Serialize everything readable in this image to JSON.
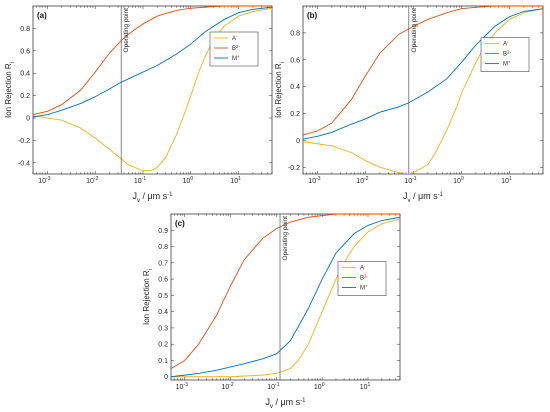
{
  "chart_data": [
    {
      "type": "line",
      "panel_label": "(a)",
      "xscale": "log",
      "xlim": [
        0.0005,
        50
      ],
      "ylim": [
        -0.5,
        1.0
      ],
      "xticks": [
        0.001,
        0.01,
        0.1,
        1,
        10
      ],
      "xtick_labels": [
        "10",
        "10",
        "10",
        "10",
        "10"
      ],
      "xtick_exponents": [
        "-3",
        "-2",
        "-1",
        "0",
        "1"
      ],
      "yticks": [
        -0.4,
        -0.2,
        0,
        0.2,
        0.4,
        0.6,
        0.8
      ],
      "ytick_labels": [
        "-0.4",
        "-0.2",
        "0",
        "0.2",
        "0.4",
        "0.6",
        "0.8"
      ],
      "xlabel": "J",
      "xlabel_sub": "v",
      "xlabel_unit": " / μm s",
      "xlabel_sup": "-1",
      "ylabel": "Ion Rejection R",
      "ylabel_sub": "i",
      "annotation": "Operating point",
      "operating_point_x": 0.035,
      "legend_position": "right",
      "series": [
        {
          "name": "A",
          "sup": "-",
          "color": "#EDB120",
          "x": [
            0.0005,
            0.002,
            0.005,
            0.01,
            0.02,
            0.05,
            0.1,
            0.15,
            0.2,
            0.3,
            0.5,
            0.8,
            1,
            1.5,
            2,
            3,
            5,
            10,
            20,
            50
          ],
          "y": [
            0.02,
            -0.02,
            -0.09,
            -0.18,
            -0.28,
            -0.42,
            -0.47,
            -0.47,
            -0.44,
            -0.35,
            -0.15,
            0.08,
            0.2,
            0.42,
            0.55,
            0.7,
            0.82,
            0.91,
            0.95,
            0.98
          ]
        },
        {
          "name": "B",
          "sup": "2-",
          "color": "#D95319",
          "x": [
            0.0005,
            0.001,
            0.002,
            0.005,
            0.01,
            0.02,
            0.035,
            0.05,
            0.1,
            0.2,
            0.5,
            1,
            2,
            5,
            10,
            50
          ],
          "y": [
            0.03,
            0.06,
            0.12,
            0.25,
            0.41,
            0.58,
            0.69,
            0.75,
            0.84,
            0.91,
            0.96,
            0.98,
            0.99,
            1.0,
            1.0,
            1.0
          ]
        },
        {
          "name": "M",
          "sup": "+",
          "color": "#0072BD",
          "x": [
            0.0005,
            0.001,
            0.002,
            0.005,
            0.01,
            0.02,
            0.035,
            0.05,
            0.1,
            0.2,
            0.5,
            1,
            2,
            5,
            10,
            20,
            50
          ],
          "y": [
            0.01,
            0.03,
            0.07,
            0.13,
            0.19,
            0.26,
            0.32,
            0.35,
            0.41,
            0.47,
            0.57,
            0.66,
            0.77,
            0.88,
            0.94,
            0.97,
            0.99
          ]
        }
      ]
    },
    {
      "type": "line",
      "panel_label": "(b)",
      "xscale": "log",
      "xlim": [
        0.0005,
        50
      ],
      "ylim": [
        -0.25,
        1.0
      ],
      "xticks": [
        0.001,
        0.01,
        0.1,
        1,
        10
      ],
      "xtick_labels": [
        "10",
        "10",
        "10",
        "10",
        "10"
      ],
      "xtick_exponents": [
        "-3",
        "-2",
        "-1",
        "0",
        "1"
      ],
      "yticks": [
        -0.2,
        0,
        0.2,
        0.4,
        0.6,
        0.8
      ],
      "ytick_labels": [
        "-0.2",
        "0",
        "0.2",
        "0.4",
        "0.6",
        "0.8"
      ],
      "xlabel": "J",
      "xlabel_sub": "v",
      "xlabel_unit": " / μm s",
      "xlabel_sup": "-1",
      "ylabel": "Ion Rejection R",
      "ylabel_sub": "i",
      "annotation": "Operating point",
      "operating_point_x": 0.08,
      "legend_position": "right",
      "series": [
        {
          "name": "A",
          "sup": "-",
          "color": "#EDB120",
          "x": [
            0.0005,
            0.002,
            0.005,
            0.01,
            0.02,
            0.05,
            0.08,
            0.1,
            0.2,
            0.3,
            0.5,
            0.8,
            1,
            2,
            3,
            5,
            10,
            20,
            50
          ],
          "y": [
            -0.01,
            -0.04,
            -0.09,
            -0.15,
            -0.2,
            -0.24,
            -0.25,
            -0.24,
            -0.18,
            -0.08,
            0.08,
            0.25,
            0.35,
            0.58,
            0.7,
            0.8,
            0.9,
            0.95,
            0.98
          ]
        },
        {
          "name": "B",
          "sup": "2-",
          "color": "#D95319",
          "x": [
            0.0005,
            0.001,
            0.002,
            0.005,
            0.01,
            0.02,
            0.05,
            0.08,
            0.1,
            0.2,
            0.5,
            1,
            2,
            5,
            10,
            50
          ],
          "y": [
            0.04,
            0.07,
            0.13,
            0.3,
            0.48,
            0.65,
            0.79,
            0.83,
            0.85,
            0.9,
            0.95,
            0.98,
            0.99,
            1.0,
            1.0,
            1.0
          ]
        },
        {
          "name": "M",
          "sup": "+",
          "color": "#0072BD",
          "x": [
            0.0005,
            0.001,
            0.002,
            0.005,
            0.01,
            0.02,
            0.05,
            0.08,
            0.1,
            0.2,
            0.5,
            1,
            2,
            5,
            10,
            20,
            50
          ],
          "y": [
            0.01,
            0.03,
            0.06,
            0.12,
            0.16,
            0.21,
            0.25,
            0.28,
            0.3,
            0.36,
            0.46,
            0.58,
            0.71,
            0.85,
            0.92,
            0.96,
            0.98
          ]
        }
      ]
    },
    {
      "type": "line",
      "panel_label": "(c)",
      "xscale": "log",
      "xlim": [
        0.0005,
        50
      ],
      "ylim": [
        -0.02,
        1.0
      ],
      "xticks": [
        0.001,
        0.01,
        0.1,
        1,
        10
      ],
      "xtick_labels": [
        "10",
        "10",
        "10",
        "10",
        "10"
      ],
      "xtick_exponents": [
        "-3",
        "-2",
        "-1",
        "0",
        "1"
      ],
      "yticks": [
        0,
        0.1,
        0.2,
        0.3,
        0.4,
        0.5,
        0.6,
        0.7,
        0.8,
        0.9
      ],
      "ytick_labels": [
        "0",
        "0.1",
        "0.2",
        "0.3",
        "0.4",
        "0.5",
        "0.6",
        "0.7",
        "0.8",
        "0.9"
      ],
      "xlabel": "J",
      "xlabel_sub": "v",
      "xlabel_unit": " / μm s",
      "xlabel_sup": "-1",
      "ylabel": "Ion Rejection R",
      "ylabel_sub": "i",
      "annotation": "Operating point",
      "operating_point_x": 0.12,
      "legend_position": "right",
      "series": [
        {
          "name": "A",
          "sup": "-",
          "color": "#EDB120",
          "x": [
            0.0005,
            0.005,
            0.01,
            0.05,
            0.1,
            0.2,
            0.3,
            0.5,
            1,
            2,
            3,
            5,
            10,
            20,
            50
          ],
          "y": [
            0.0,
            0.0,
            0.0,
            0.01,
            0.02,
            0.05,
            0.1,
            0.2,
            0.4,
            0.6,
            0.7,
            0.8,
            0.89,
            0.94,
            0.97
          ]
        },
        {
          "name": "B",
          "sup": "2-",
          "color": "#D95319",
          "x": [
            0.0005,
            0.001,
            0.002,
            0.005,
            0.01,
            0.02,
            0.05,
            0.1,
            0.12,
            0.2,
            0.5,
            1,
            2,
            5,
            10,
            50
          ],
          "y": [
            0.05,
            0.1,
            0.2,
            0.38,
            0.56,
            0.72,
            0.85,
            0.91,
            0.92,
            0.95,
            0.98,
            0.99,
            1.0,
            1.0,
            1.0,
            1.0
          ]
        },
        {
          "name": "M",
          "sup": "+",
          "color": "#0072BD",
          "x": [
            0.0005,
            0.001,
            0.002,
            0.005,
            0.01,
            0.02,
            0.05,
            0.1,
            0.2,
            0.5,
            1,
            2,
            5,
            10,
            20,
            50
          ],
          "y": [
            0.0,
            0.01,
            0.02,
            0.04,
            0.06,
            0.08,
            0.11,
            0.14,
            0.22,
            0.42,
            0.6,
            0.76,
            0.88,
            0.93,
            0.96,
            0.98
          ]
        }
      ]
    }
  ]
}
